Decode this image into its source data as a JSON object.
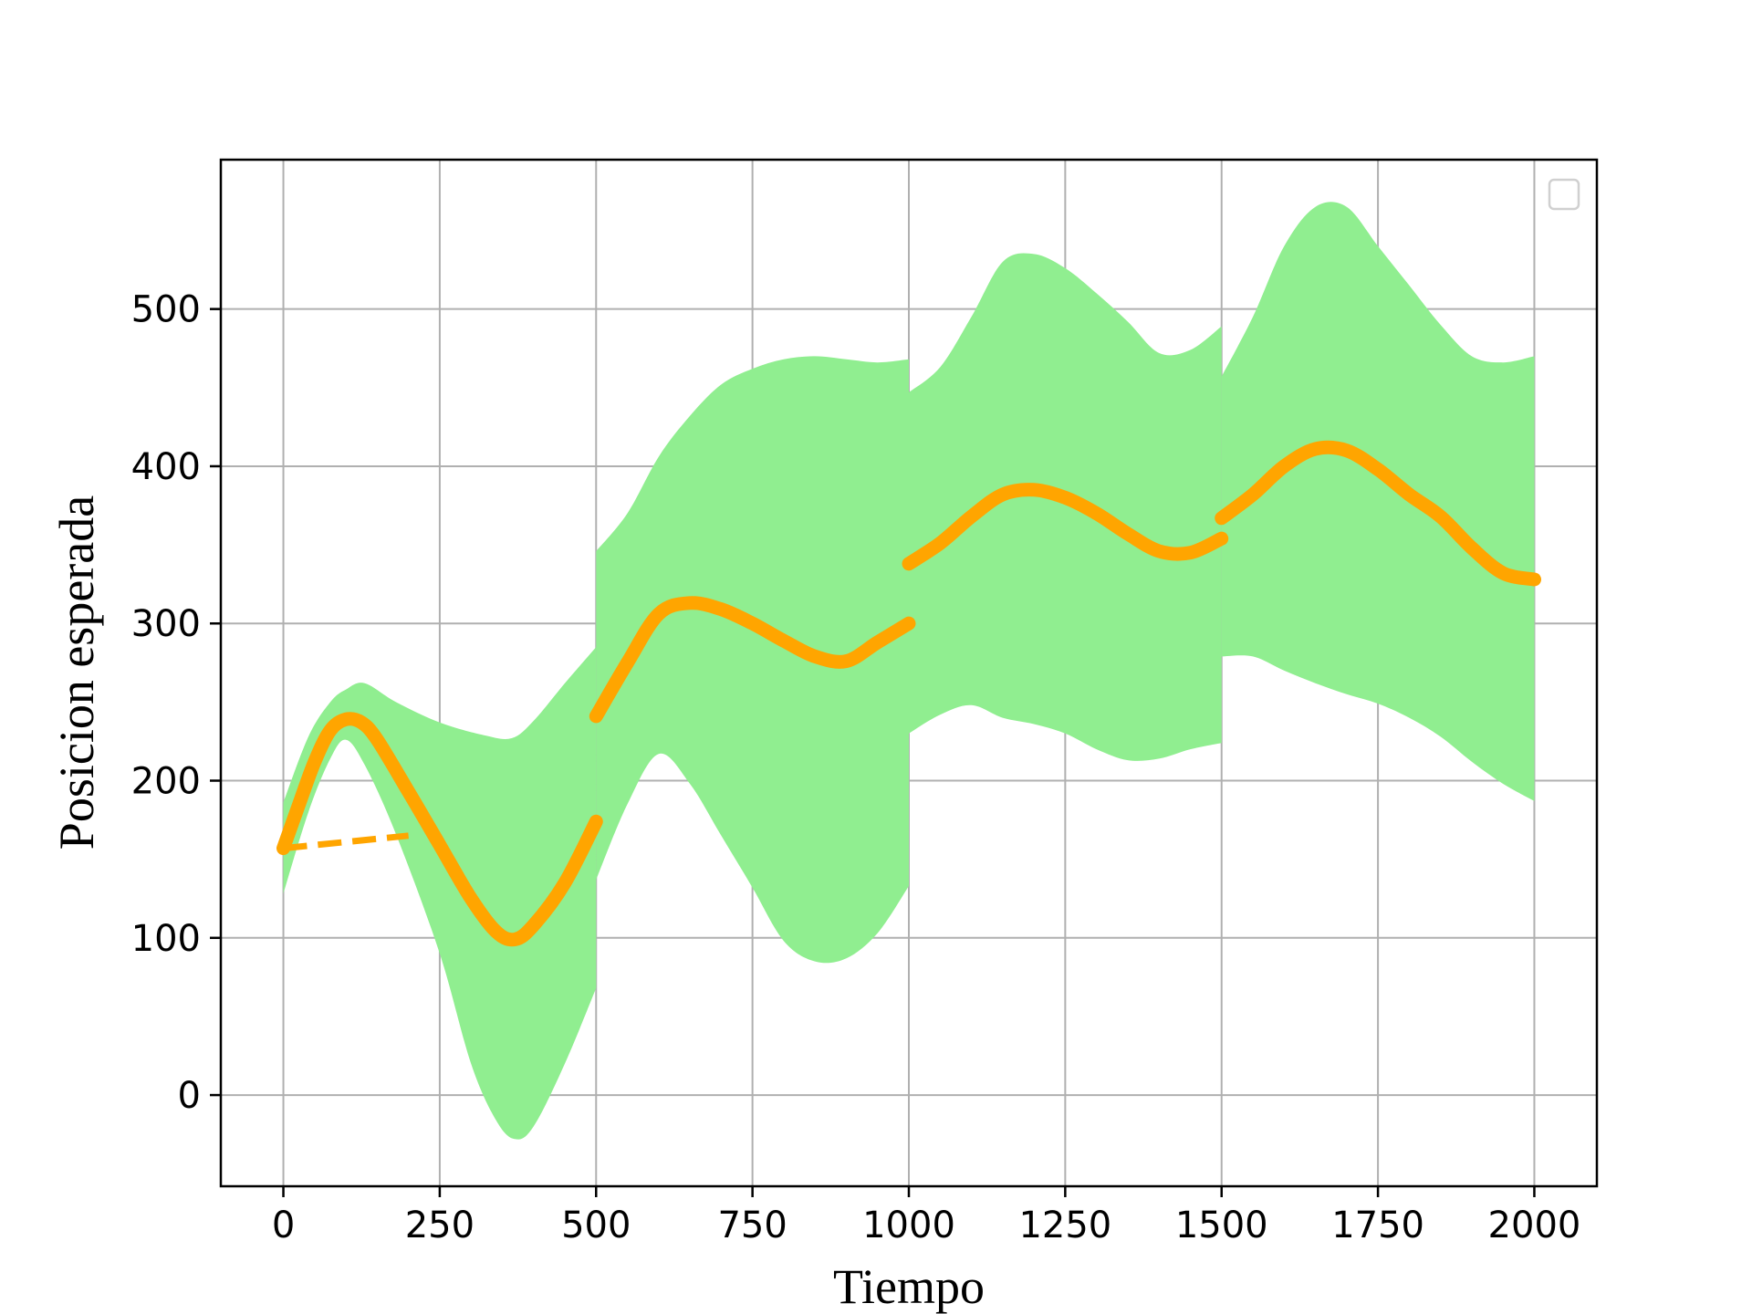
{
  "chart_data": {
    "type": "line",
    "xlabel": "Tiempo",
    "ylabel": "Posicion esperada",
    "xlim": [
      -100,
      2100
    ],
    "ylim": [
      -58,
      595
    ],
    "xticks": [
      0,
      250,
      500,
      750,
      1000,
      1250,
      1500,
      1750,
      2000
    ],
    "yticks": [
      0,
      100,
      200,
      300,
      400,
      500
    ],
    "grid": true,
    "legend": {
      "position": "top-right",
      "entries": []
    },
    "colors": {
      "line": "#FFA500",
      "band": "#90EE90",
      "grid": "#b0b0b0"
    },
    "segments": [
      {
        "mean": [
          [
            0,
            157
          ],
          [
            25,
            185
          ],
          [
            50,
            212
          ],
          [
            75,
            232
          ],
          [
            100,
            239
          ],
          [
            125,
            237
          ],
          [
            150,
            226
          ],
          [
            200,
            193
          ],
          [
            250,
            159
          ],
          [
            300,
            125
          ],
          [
            340,
            104
          ],
          [
            370,
            99
          ],
          [
            400,
            108
          ],
          [
            450,
            135
          ],
          [
            500,
            174
          ]
        ],
        "upper": [
          [
            0,
            186
          ],
          [
            40,
            228
          ],
          [
            75,
            250
          ],
          [
            100,
            258
          ],
          [
            130,
            262
          ],
          [
            180,
            250
          ],
          [
            250,
            237
          ],
          [
            320,
            229
          ],
          [
            365,
            227
          ],
          [
            400,
            238
          ],
          [
            450,
            262
          ],
          [
            500,
            285
          ]
        ],
        "lower": [
          [
            0,
            128
          ],
          [
            40,
            180
          ],
          [
            75,
            214
          ],
          [
            100,
            226
          ],
          [
            130,
            210
          ],
          [
            180,
            166
          ],
          [
            250,
            90
          ],
          [
            300,
            20
          ],
          [
            340,
            -16
          ],
          [
            370,
            -28
          ],
          [
            400,
            -20
          ],
          [
            450,
            20
          ],
          [
            500,
            68
          ]
        ]
      },
      {
        "mean": [
          [
            500,
            241
          ],
          [
            550,
            275
          ],
          [
            600,
            306
          ],
          [
            650,
            313
          ],
          [
            700,
            309
          ],
          [
            750,
            300
          ],
          [
            800,
            289
          ],
          [
            850,
            279
          ],
          [
            900,
            276
          ],
          [
            950,
            288
          ],
          [
            1000,
            300
          ]
        ],
        "upper": [
          [
            500,
            346
          ],
          [
            550,
            370
          ],
          [
            600,
            406
          ],
          [
            650,
            432
          ],
          [
            700,
            452
          ],
          [
            750,
            462
          ],
          [
            800,
            468
          ],
          [
            850,
            470
          ],
          [
            900,
            468
          ],
          [
            950,
            466
          ],
          [
            1000,
            468
          ]
        ],
        "lower": [
          [
            500,
            137
          ],
          [
            550,
            185
          ],
          [
            600,
            217
          ],
          [
            650,
            198
          ],
          [
            700,
            165
          ],
          [
            750,
            132
          ],
          [
            800,
            98
          ],
          [
            850,
            85
          ],
          [
            900,
            87
          ],
          [
            950,
            103
          ],
          [
            1000,
            133
          ]
        ]
      },
      {
        "mean": [
          [
            1000,
            338
          ],
          [
            1050,
            351
          ],
          [
            1100,
            368
          ],
          [
            1150,
            382
          ],
          [
            1200,
            385
          ],
          [
            1250,
            380
          ],
          [
            1300,
            370
          ],
          [
            1350,
            357
          ],
          [
            1400,
            346
          ],
          [
            1450,
            345
          ],
          [
            1500,
            354
          ]
        ],
        "upper": [
          [
            1000,
            447
          ],
          [
            1050,
            463
          ],
          [
            1100,
            495
          ],
          [
            1150,
            530
          ],
          [
            1200,
            535
          ],
          [
            1250,
            526
          ],
          [
            1300,
            510
          ],
          [
            1350,
            492
          ],
          [
            1400,
            472
          ],
          [
            1450,
            474
          ],
          [
            1500,
            489
          ]
        ],
        "lower": [
          [
            1000,
            230
          ],
          [
            1050,
            242
          ],
          [
            1100,
            248
          ],
          [
            1150,
            240
          ],
          [
            1200,
            236
          ],
          [
            1250,
            230
          ],
          [
            1300,
            220
          ],
          [
            1350,
            213
          ],
          [
            1400,
            214
          ],
          [
            1450,
            220
          ],
          [
            1500,
            224
          ]
        ]
      },
      {
        "mean": [
          [
            1500,
            367
          ],
          [
            1550,
            382
          ],
          [
            1600,
            400
          ],
          [
            1650,
            411
          ],
          [
            1700,
            410
          ],
          [
            1750,
            398
          ],
          [
            1800,
            382
          ],
          [
            1850,
            368
          ],
          [
            1900,
            348
          ],
          [
            1950,
            332
          ],
          [
            2000,
            328
          ]
        ],
        "upper": [
          [
            1500,
            457
          ],
          [
            1550,
            495
          ],
          [
            1600,
            540
          ],
          [
            1650,
            565
          ],
          [
            1700,
            565
          ],
          [
            1750,
            540
          ],
          [
            1800,
            515
          ],
          [
            1850,
            490
          ],
          [
            1900,
            470
          ],
          [
            1950,
            466
          ],
          [
            2000,
            470
          ]
        ],
        "lower": [
          [
            1500,
            279
          ],
          [
            1550,
            279
          ],
          [
            1600,
            270
          ],
          [
            1650,
            262
          ],
          [
            1700,
            255
          ],
          [
            1750,
            249
          ],
          [
            1800,
            240
          ],
          [
            1850,
            228
          ],
          [
            1900,
            212
          ],
          [
            1950,
            198
          ],
          [
            2000,
            187
          ]
        ]
      }
    ],
    "dashed_line": [
      [
        0,
        157
      ],
      [
        200,
        165
      ]
    ]
  }
}
